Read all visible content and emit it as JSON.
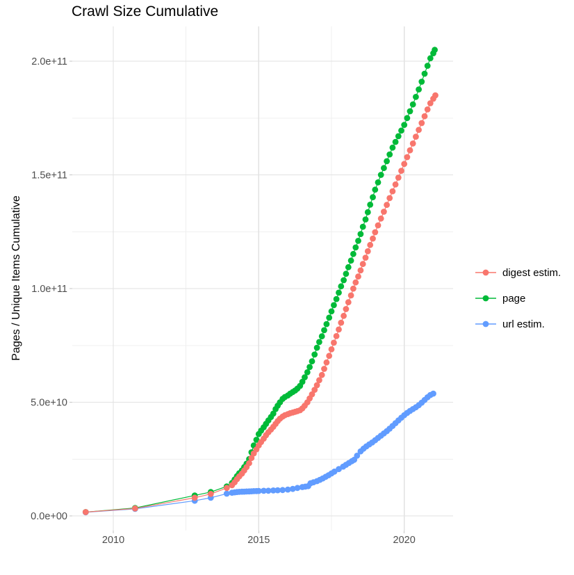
{
  "chart_data": {
    "type": "scatter",
    "title": "Crawl Size Cumulative",
    "xlabel": "",
    "ylabel": "Pages / Unique Items Cumulative",
    "value_unit": "items, stored as value × 1e9",
    "xlim": [
      2008.59,
      2021.68
    ],
    "ylim_e9": [
      -6.4,
      215.3
    ],
    "x_major_ticks": [
      {
        "value": 2010,
        "label": "2010"
      },
      {
        "value": 2015,
        "label": "2015"
      },
      {
        "value": 2020,
        "label": "2020"
      }
    ],
    "x_minor_ticks": [
      2012.5,
      2017.5
    ],
    "y_major_ticks": [
      {
        "value_e9": 0,
        "label": "0.0e+00"
      },
      {
        "value_e9": 50,
        "label": "5.0e+10"
      },
      {
        "value_e9": 100,
        "label": "1.0e+11"
      },
      {
        "value_e9": 150,
        "label": "1.5e+11"
      },
      {
        "value_e9": 200,
        "label": "2.0e+11"
      }
    ],
    "y_minor_ticks_e9": [
      25,
      75,
      125,
      175
    ],
    "grid": {
      "major_color": "#E2E2E2",
      "minor_color": "#EFEFEF",
      "background": "#FFFFFF"
    },
    "axis_text_color": "#4D4D4D",
    "legend": {
      "position": "right",
      "items": [
        "digest estim.",
        "page",
        "url estim."
      ]
    },
    "draw_order": [
      "page",
      "url estim.",
      "digest estim."
    ],
    "series": [
      {
        "name": "digest estim.",
        "color": "#F8766D",
        "points": [
          [
            2009.05,
            1.7
          ],
          [
            2010.75,
            3.3
          ],
          [
            2012.8,
            8
          ],
          [
            2013.35,
            9.7
          ],
          [
            2013.9,
            12.3
          ],
          [
            2014.08,
            13.5
          ],
          [
            2014.17,
            14.8
          ],
          [
            2014.25,
            16.2
          ],
          [
            2014.33,
            17.4
          ],
          [
            2014.42,
            18.6
          ],
          [
            2014.5,
            20
          ],
          [
            2014.58,
            21.5
          ],
          [
            2014.67,
            23.2
          ],
          [
            2014.75,
            25.5
          ],
          [
            2014.83,
            27.5
          ],
          [
            2014.92,
            29.3
          ],
          [
            2015.0,
            31
          ],
          [
            2015.08,
            32.5
          ],
          [
            2015.17,
            34
          ],
          [
            2015.25,
            35.5
          ],
          [
            2015.33,
            36.8
          ],
          [
            2015.42,
            38
          ],
          [
            2015.5,
            39.2
          ],
          [
            2015.58,
            40.5
          ],
          [
            2015.65,
            41.7
          ],
          [
            2015.73,
            42.8
          ],
          [
            2015.82,
            43.7
          ],
          [
            2015.9,
            44.3
          ],
          [
            2016.0,
            44.8
          ],
          [
            2016.08,
            45.2
          ],
          [
            2016.17,
            45.5
          ],
          [
            2016.25,
            45.8
          ],
          [
            2016.33,
            46.1
          ],
          [
            2016.42,
            46.5
          ],
          [
            2016.5,
            47.3
          ],
          [
            2016.58,
            48.5
          ],
          [
            2016.67,
            50
          ],
          [
            2016.75,
            51.7
          ],
          [
            2016.83,
            53.5
          ],
          [
            2016.92,
            55.5
          ],
          [
            2017.0,
            57.5
          ],
          [
            2017.08,
            59.7
          ],
          [
            2017.17,
            62
          ],
          [
            2017.25,
            64.7
          ],
          [
            2017.33,
            67.5
          ],
          [
            2017.42,
            70.4
          ],
          [
            2017.5,
            73.3
          ],
          [
            2017.58,
            76.2
          ],
          [
            2017.67,
            79.1
          ],
          [
            2017.75,
            82
          ],
          [
            2017.83,
            85
          ],
          [
            2017.92,
            88
          ],
          [
            2018.0,
            91
          ],
          [
            2018.08,
            94
          ],
          [
            2018.17,
            97
          ],
          [
            2018.25,
            100
          ],
          [
            2018.33,
            102.7
          ],
          [
            2018.42,
            105.3
          ],
          [
            2018.5,
            108
          ],
          [
            2018.58,
            110.8
          ],
          [
            2018.67,
            113.6
          ],
          [
            2018.75,
            116.4
          ],
          [
            2018.83,
            119.2
          ],
          [
            2018.92,
            122
          ],
          [
            2019.0,
            124.8
          ],
          [
            2019.1,
            127.8
          ],
          [
            2019.2,
            130.8
          ],
          [
            2019.3,
            133.8
          ],
          [
            2019.4,
            136.8
          ],
          [
            2019.5,
            139.8
          ],
          [
            2019.6,
            142.8
          ],
          [
            2019.7,
            145.8
          ],
          [
            2019.8,
            148.8
          ],
          [
            2019.9,
            151.8
          ],
          [
            2020.0,
            154.8
          ],
          [
            2020.1,
            157.8
          ],
          [
            2020.2,
            160.8
          ],
          [
            2020.3,
            163.8
          ],
          [
            2020.4,
            166.8
          ],
          [
            2020.5,
            169.8
          ],
          [
            2020.6,
            172.8
          ],
          [
            2020.7,
            175.8
          ],
          [
            2020.8,
            178.8
          ],
          [
            2020.9,
            181.5
          ],
          [
            2021.0,
            183.5
          ],
          [
            2021.07,
            185
          ]
        ]
      },
      {
        "name": "page",
        "color": "#00BA38",
        "points": [
          [
            2009.05,
            1.7
          ],
          [
            2010.75,
            3.5
          ],
          [
            2012.8,
            9
          ],
          [
            2013.35,
            10.5
          ],
          [
            2013.9,
            13
          ],
          [
            2014.08,
            14.5
          ],
          [
            2014.17,
            16
          ],
          [
            2014.25,
            17.5
          ],
          [
            2014.33,
            18.8
          ],
          [
            2014.42,
            20
          ],
          [
            2014.5,
            21.5
          ],
          [
            2014.58,
            23
          ],
          [
            2014.67,
            25
          ],
          [
            2014.75,
            28
          ],
          [
            2014.83,
            31
          ],
          [
            2014.92,
            33.5
          ],
          [
            2015.0,
            36
          ],
          [
            2015.08,
            37.5
          ],
          [
            2015.17,
            39
          ],
          [
            2015.25,
            40.5
          ],
          [
            2015.33,
            42
          ],
          [
            2015.42,
            43.5
          ],
          [
            2015.5,
            45
          ],
          [
            2015.58,
            47
          ],
          [
            2015.65,
            48.5
          ],
          [
            2015.73,
            50
          ],
          [
            2015.82,
            51.5
          ],
          [
            2015.9,
            52.3
          ],
          [
            2016.0,
            53
          ],
          [
            2016.08,
            53.8
          ],
          [
            2016.17,
            54.5
          ],
          [
            2016.25,
            55.2
          ],
          [
            2016.33,
            56
          ],
          [
            2016.42,
            57.2
          ],
          [
            2016.5,
            59
          ],
          [
            2016.58,
            61
          ],
          [
            2016.67,
            63.2
          ],
          [
            2016.75,
            65.5
          ],
          [
            2016.83,
            68
          ],
          [
            2016.92,
            71
          ],
          [
            2017.0,
            74
          ],
          [
            2017.08,
            76.5
          ],
          [
            2017.17,
            79
          ],
          [
            2017.25,
            81.7
          ],
          [
            2017.33,
            84.4
          ],
          [
            2017.42,
            87.2
          ],
          [
            2017.5,
            90
          ],
          [
            2017.58,
            92.7
          ],
          [
            2017.67,
            95.4
          ],
          [
            2017.75,
            98.2
          ],
          [
            2017.83,
            101
          ],
          [
            2017.92,
            103.7
          ],
          [
            2018.0,
            106.5
          ],
          [
            2018.08,
            109.4
          ],
          [
            2018.17,
            112.3
          ],
          [
            2018.25,
            115.2
          ],
          [
            2018.33,
            118.1
          ],
          [
            2018.42,
            121
          ],
          [
            2018.5,
            124
          ],
          [
            2018.58,
            127.2
          ],
          [
            2018.67,
            130.4
          ],
          [
            2018.75,
            133.6
          ],
          [
            2018.83,
            136.9
          ],
          [
            2018.92,
            140.2
          ],
          [
            2019.0,
            143.5
          ],
          [
            2019.1,
            146.7
          ],
          [
            2019.2,
            150
          ],
          [
            2019.3,
            153
          ],
          [
            2019.4,
            156
          ],
          [
            2019.5,
            159
          ],
          [
            2019.6,
            162
          ],
          [
            2019.7,
            164.5
          ],
          [
            2019.8,
            167
          ],
          [
            2019.9,
            169.5
          ],
          [
            2020.0,
            172
          ],
          [
            2020.1,
            175
          ],
          [
            2020.2,
            178
          ],
          [
            2020.3,
            181
          ],
          [
            2020.4,
            184.3
          ],
          [
            2020.5,
            187.6
          ],
          [
            2020.6,
            191
          ],
          [
            2020.7,
            194.5
          ],
          [
            2020.8,
            198
          ],
          [
            2020.9,
            201.3
          ],
          [
            2021.0,
            203.5
          ],
          [
            2021.05,
            205
          ]
        ]
      },
      {
        "name": "url estim.",
        "color": "#619CFF",
        "points": [
          [
            2009.05,
            1.6
          ],
          [
            2010.75,
            3.1
          ],
          [
            2012.8,
            6.7
          ],
          [
            2013.35,
            8.0
          ],
          [
            2013.9,
            9.8
          ],
          [
            2014.08,
            10.2
          ],
          [
            2014.17,
            10.4
          ],
          [
            2014.25,
            10.5
          ],
          [
            2014.33,
            10.6
          ],
          [
            2014.42,
            10.65
          ],
          [
            2014.5,
            10.7
          ],
          [
            2014.58,
            10.75
          ],
          [
            2014.67,
            10.8
          ],
          [
            2014.75,
            10.85
          ],
          [
            2014.83,
            10.9
          ],
          [
            2014.92,
            10.95
          ],
          [
            2015.0,
            11.0
          ],
          [
            2015.17,
            11.05
          ],
          [
            2015.33,
            11.1
          ],
          [
            2015.5,
            11.2
          ],
          [
            2015.65,
            11.3
          ],
          [
            2015.82,
            11.4
          ],
          [
            2016.0,
            11.6
          ],
          [
            2016.17,
            11.9
          ],
          [
            2016.33,
            12.3
          ],
          [
            2016.5,
            12.7
          ],
          [
            2016.6,
            12.9
          ],
          [
            2016.7,
            13.1
          ],
          [
            2016.78,
            14.4
          ],
          [
            2016.88,
            14.8
          ],
          [
            2017.0,
            15.3
          ],
          [
            2017.1,
            15.9
          ],
          [
            2017.2,
            16.5
          ],
          [
            2017.3,
            17.2
          ],
          [
            2017.4,
            17.9
          ],
          [
            2017.5,
            18.7
          ],
          [
            2017.6,
            19.5
          ],
          [
            2017.75,
            20.6
          ],
          [
            2017.9,
            21.7
          ],
          [
            2018.0,
            22.5
          ],
          [
            2018.1,
            23.3
          ],
          [
            2018.2,
            24.1
          ],
          [
            2018.28,
            24.7
          ],
          [
            2018.38,
            26.5
          ],
          [
            2018.5,
            28.4
          ],
          [
            2018.6,
            29.6
          ],
          [
            2018.7,
            30.6
          ],
          [
            2018.8,
            31.5
          ],
          [
            2018.9,
            32.3
          ],
          [
            2019.0,
            33.3
          ],
          [
            2019.1,
            34.3
          ],
          [
            2019.2,
            35.3
          ],
          [
            2019.3,
            36.3
          ],
          [
            2019.4,
            37.3
          ],
          [
            2019.5,
            38.4
          ],
          [
            2019.6,
            39.6
          ],
          [
            2019.7,
            40.8
          ],
          [
            2019.8,
            42.0
          ],
          [
            2019.9,
            43.2
          ],
          [
            2020.0,
            44.3
          ],
          [
            2020.1,
            45.3
          ],
          [
            2020.2,
            46.2
          ],
          [
            2020.3,
            47.0
          ],
          [
            2020.4,
            47.8
          ],
          [
            2020.5,
            48.7
          ],
          [
            2020.6,
            49.8
          ],
          [
            2020.7,
            51.0
          ],
          [
            2020.8,
            52.2
          ],
          [
            2020.9,
            53.2
          ],
          [
            2021.0,
            53.8
          ]
        ]
      }
    ]
  }
}
